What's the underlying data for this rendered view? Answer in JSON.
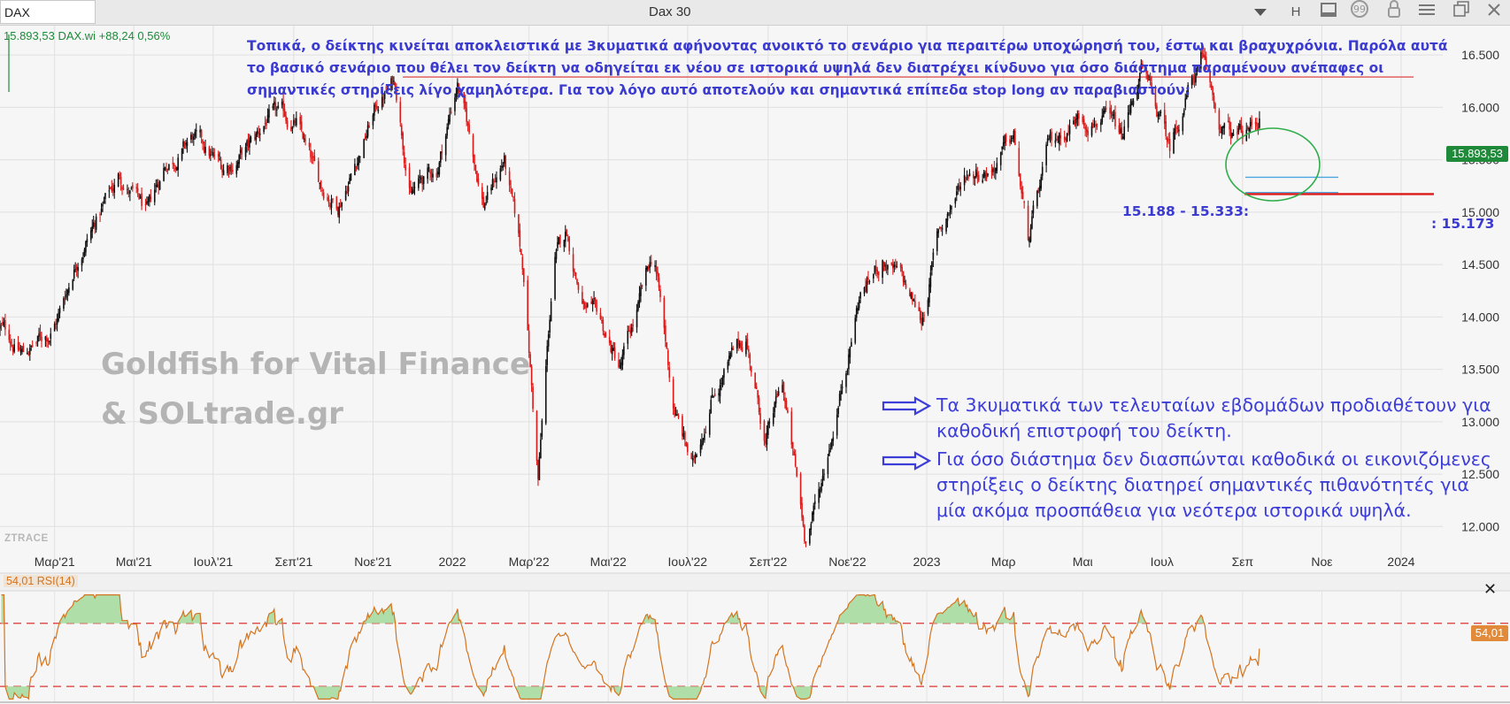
{
  "window": {
    "symbol": "DAX",
    "title": "Dax 30",
    "icons": [
      "chevron-down-icon",
      "h-icon",
      "panel-icon",
      "comment-icon",
      "lock-icon",
      "menu-icon",
      "restore-icon",
      "close-icon"
    ],
    "h_label": "H"
  },
  "quote": "15.893,53 DAX.wi +88,24 0,56%",
  "watermark": {
    "line1": "Goldfish for Vital Finance",
    "line2": "& SOLtrade.gr"
  },
  "ztrace": "ZTRACE",
  "top_note": "Τοπικά, ο δείκτης κινείται αποκλειστικά με 3κυματικά αφήνοντας ανοικτό το σενάριο για περαιτέρω υποχώρησή του, έστω και βραχυχρόνια. Παρόλα αυτά το βασικό σενάριο που θέλει τον δείκτη να οδηγείται εκ νέου σε ιστορικά υψηλά δεν διατρέχει κίνδυνο για όσο διάστημα παραμένουν ανέπαφες οι σημαντικές στηρίξεις λίγο χαμηλότερα. Για τον λόγο αυτό αποτελούν και σημαντικά επίπεδα stop long αν παραβιαστούν:",
  "bullets": [
    "Τα 3κυματικά των τελευταίων εβδομάδων προδιαθέτουν για καθοδική επιστροφή του δείκτη.",
    "Για όσο διάστημα δεν διασπώνται καθοδικά οι εικονιζόμενες στηρίξεις ο δείκτης διατηρεί σημαντικές πιθανότητές για μία ακόμα προσπάθεια για νεότερα ιστορικά υψηλά."
  ],
  "support_zone_label": "15.188 - 15.333:",
  "stop_label": ": 15.173",
  "last_price_badge": "15.893,53",
  "rsi_badge": "54,01",
  "rsi_label": "54,01 RSI(14)",
  "colors": {
    "up_candle": "#111111",
    "down_candle": "#dd1a1a",
    "annotation_blue": "#3b3bd0",
    "resistance_line": "#e05555",
    "stop_line": "#dd1a1a",
    "support_lines": "#4aa8e0",
    "ellipse": "#2eae4a",
    "rsi_line": "#d4741f",
    "rsi_fill": "#a8dba0",
    "price_badge": "#1e8a3a"
  },
  "chart_data": [
    {
      "type": "candlestick",
      "x_axis_type": "date",
      "x_ticks": [
        "Μαρ'21",
        "Μαι'21",
        "Ιουλ'21",
        "Σεπ'21",
        "Νοε'21",
        "2022",
        "Μαρ'22",
        "Μαι'22",
        "Ιουλ'22",
        "Σεπ'22",
        "Νοε'22",
        "2023",
        "Μαρ",
        "Μαι",
        "Ιουλ",
        "Σεπ",
        "Νοε",
        "2024"
      ],
      "x_tick_dates": [
        "2021-03-01",
        "2021-05-01",
        "2021-07-01",
        "2021-09-01",
        "2021-11-01",
        "2022-01-01",
        "2022-03-01",
        "2022-05-01",
        "2022-07-01",
        "2022-09-01",
        "2022-11-01",
        "2023-01-01",
        "2023-03-01",
        "2023-05-01",
        "2023-07-01",
        "2023-09-01",
        "2023-11-01",
        "2024-01-01"
      ],
      "x_range": [
        "2021-01-18",
        "2024-02-02"
      ],
      "y_ticks": [
        "12.000",
        "12.500",
        "13.000",
        "13.500",
        "14.000",
        "14.500",
        "15.000",
        "15.500",
        "16.000",
        "16.500"
      ],
      "y_tick_values": [
        12000,
        12500,
        13000,
        13500,
        14000,
        14500,
        15000,
        15500,
        16000,
        16500
      ],
      "ylim": [
        11800,
        16780
      ],
      "close_path": [
        [
          "2021-01-18",
          13900
        ],
        [
          "2021-02-05",
          13650
        ],
        [
          "2021-02-25",
          13850
        ],
        [
          "2021-03-05",
          14050
        ],
        [
          "2021-03-20",
          14650
        ],
        [
          "2021-04-05",
          15000
        ],
        [
          "2021-04-20",
          15350
        ],
        [
          "2021-05-12",
          14950
        ],
        [
          "2021-05-25",
          15450
        ],
        [
          "2021-06-15",
          15700
        ],
        [
          "2021-07-08",
          15400
        ],
        [
          "2021-08-01",
          15650
        ],
        [
          "2021-08-12",
          15900
        ],
        [
          "2021-09-03",
          15850
        ],
        [
          "2021-09-20",
          15250
        ],
        [
          "2021-10-05",
          15100
        ],
        [
          "2021-10-20",
          15550
        ],
        [
          "2021-11-05",
          16050
        ],
        [
          "2021-11-18",
          16250
        ],
        [
          "2021-11-30",
          15200
        ],
        [
          "2021-12-20",
          15400
        ],
        [
          "2022-01-05",
          16250
        ],
        [
          "2022-01-25",
          15100
        ],
        [
          "2022-02-10",
          15500
        ],
        [
          "2022-02-25",
          14400
        ],
        [
          "2022-03-08",
          12450
        ],
        [
          "2022-03-20",
          14500
        ],
        [
          "2022-03-30",
          14800
        ],
        [
          "2022-04-12",
          14100
        ],
        [
          "2022-04-25",
          13900
        ],
        [
          "2022-05-10",
          13500
        ],
        [
          "2022-05-25",
          14100
        ],
        [
          "2022-06-05",
          14600
        ],
        [
          "2022-06-20",
          13150
        ],
        [
          "2022-07-05",
          12550
        ],
        [
          "2022-07-20",
          13300
        ],
        [
          "2022-08-15",
          13800
        ],
        [
          "2022-08-30",
          12800
        ],
        [
          "2022-09-12",
          13350
        ],
        [
          "2022-09-29",
          11900
        ],
        [
          "2022-10-10",
          12300
        ],
        [
          "2022-10-25",
          13200
        ],
        [
          "2022-11-10",
          14200
        ],
        [
          "2022-11-28",
          14550
        ],
        [
          "2022-12-12",
          14350
        ],
        [
          "2022-12-28",
          13950
        ],
        [
          "2023-01-10",
          14800
        ],
        [
          "2023-02-01",
          15400
        ],
        [
          "2023-02-20",
          15450
        ],
        [
          "2023-03-09",
          15700
        ],
        [
          "2023-03-20",
          14700
        ],
        [
          "2023-04-05",
          15600
        ],
        [
          "2023-04-25",
          15900
        ],
        [
          "2023-05-15",
          15950
        ],
        [
          "2023-05-31",
          15650
        ],
        [
          "2023-06-15",
          16350
        ],
        [
          "2023-07-07",
          15600
        ],
        [
          "2023-07-20",
          16150
        ],
        [
          "2023-07-31",
          16450
        ],
        [
          "2023-08-15",
          15800
        ],
        [
          "2023-08-25",
          15700
        ],
        [
          "2023-09-05",
          15750
        ],
        [
          "2023-09-14",
          15893
        ]
      ],
      "last_price": 15893.53
    },
    {
      "type": "line",
      "series": [
        {
          "name": "RSI(14)",
          "last_value": 54.01
        }
      ],
      "ylim": [
        0,
        100
      ],
      "reference_levels": [
        70,
        30
      ]
    }
  ],
  "annotations": {
    "resistance_level": 16290,
    "support_zone": [
      15188,
      15333
    ],
    "stop_level": 15173
  }
}
